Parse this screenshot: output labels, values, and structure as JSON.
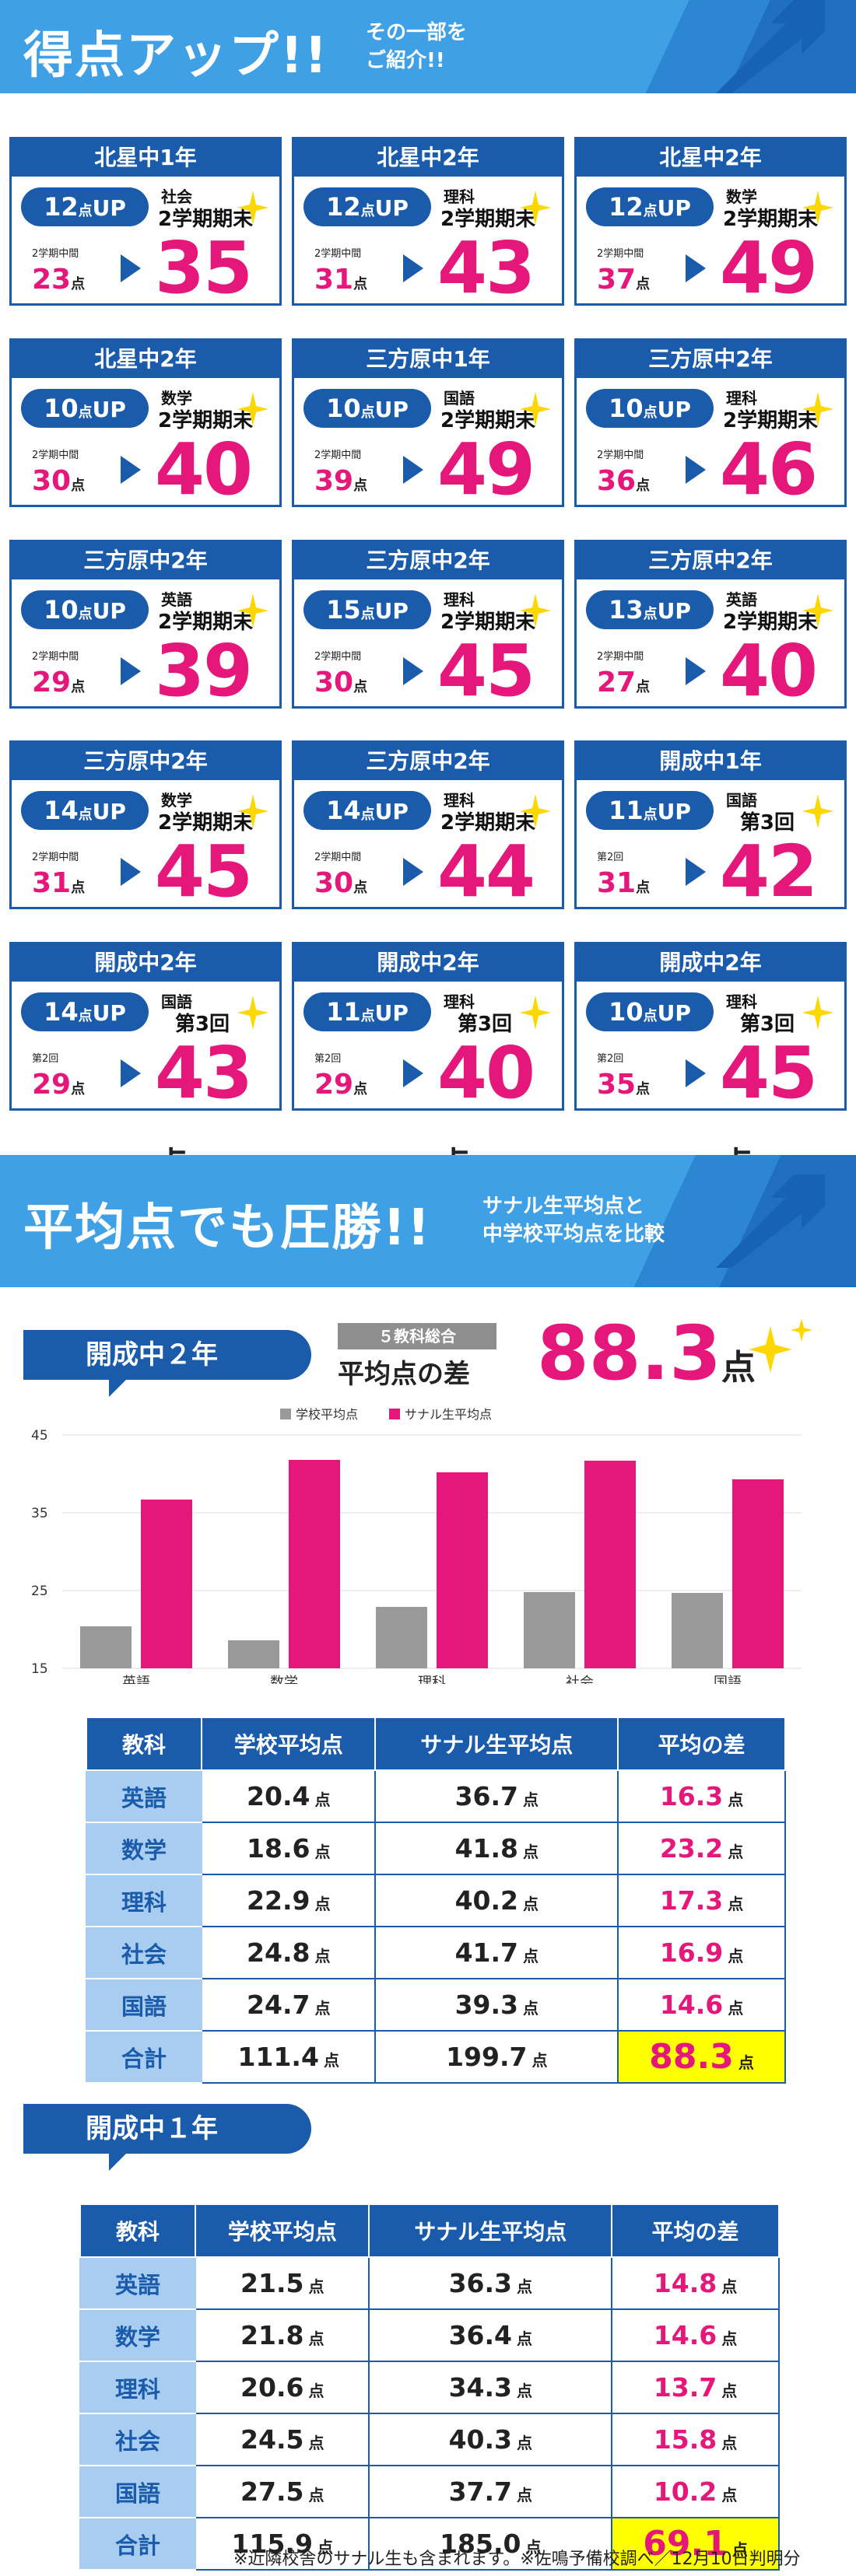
{
  "banner1": {
    "title": "得点アップ!!",
    "sub_line1": "その一部を",
    "sub_line2": "ご紹介!!"
  },
  "cards": [
    {
      "school": "北星中1年",
      "up": "12",
      "subject": "社会",
      "term": "2学期期末",
      "prev_label": "2学期中間",
      "prev": "23",
      "score": "35"
    },
    {
      "school": "北星中2年",
      "up": "12",
      "subject": "理科",
      "term": "2学期期末",
      "prev_label": "2学期中間",
      "prev": "31",
      "score": "43"
    },
    {
      "school": "北星中2年",
      "up": "12",
      "subject": "数学",
      "term": "2学期期末",
      "prev_label": "2学期中間",
      "prev": "37",
      "score": "49"
    },
    {
      "school": "北星中2年",
      "up": "10",
      "subject": "数学",
      "term": "2学期期末",
      "prev_label": "2学期中間",
      "prev": "30",
      "score": "40"
    },
    {
      "school": "三方原中1年",
      "up": "10",
      "subject": "国語",
      "term": "2学期期末",
      "prev_label": "2学期中間",
      "prev": "39",
      "score": "49"
    },
    {
      "school": "三方原中2年",
      "up": "10",
      "subject": "理科",
      "term": "2学期期末",
      "prev_label": "2学期中間",
      "prev": "36",
      "score": "46"
    },
    {
      "school": "三方原中2年",
      "up": "10",
      "subject": "英語",
      "term": "2学期期末",
      "prev_label": "2学期中間",
      "prev": "29",
      "score": "39"
    },
    {
      "school": "三方原中2年",
      "up": "15",
      "subject": "理科",
      "term": "2学期期末",
      "prev_label": "2学期中間",
      "prev": "30",
      "score": "45"
    },
    {
      "school": "三方原中2年",
      "up": "13",
      "subject": "英語",
      "term": "2学期期末",
      "prev_label": "2学期中間",
      "prev": "27",
      "score": "40"
    },
    {
      "school": "三方原中2年",
      "up": "14",
      "subject": "数学",
      "term": "2学期期末",
      "prev_label": "2学期中間",
      "prev": "31",
      "score": "45"
    },
    {
      "school": "三方原中2年",
      "up": "14",
      "subject": "理科",
      "term": "2学期期末",
      "prev_label": "2学期中間",
      "prev": "30",
      "score": "44"
    },
    {
      "school": "開成中1年",
      "up": "11",
      "subject": "国語",
      "term": "第3回",
      "prev_label": "第2回",
      "prev": "31",
      "score": "42"
    },
    {
      "school": "開成中2年",
      "up": "14",
      "subject": "国語",
      "term": "第3回",
      "prev_label": "第2回",
      "prev": "29",
      "score": "43"
    },
    {
      "school": "開成中2年",
      "up": "11",
      "subject": "理科",
      "term": "第3回",
      "prev_label": "第2回",
      "prev": "29",
      "score": "40"
    },
    {
      "school": "開成中2年",
      "up": "10",
      "subject": "理科",
      "term": "第3回",
      "prev_label": "第2回",
      "prev": "35",
      "score": "45"
    }
  ],
  "labels": {
    "up_ten": "点",
    "up_suffix": "UP",
    "point": "点"
  },
  "banner2": {
    "title": "平均点でも圧勝!!",
    "sub_line1": "サナル生平均点と",
    "sub_line2": "中学校平均点を比較"
  },
  "kaisei2": {
    "tag": "開成中２年",
    "badge": "５教科総合",
    "diff_label": "平均点の差",
    "diff_value": "88.3",
    "table": {
      "headers": [
        "教科",
        "学校平均点",
        "サナル生平均点",
        "平均の差"
      ],
      "rows": [
        {
          "subject": "英語",
          "school": "20.4",
          "sanaru": "36.7",
          "diff": "16.3"
        },
        {
          "subject": "数学",
          "school": "18.6",
          "sanaru": "41.8",
          "diff": "23.2"
        },
        {
          "subject": "理科",
          "school": "22.9",
          "sanaru": "40.2",
          "diff": "17.3"
        },
        {
          "subject": "社会",
          "school": "24.8",
          "sanaru": "41.7",
          "diff": "16.9"
        },
        {
          "subject": "国語",
          "school": "24.7",
          "sanaru": "39.3",
          "diff": "14.6"
        },
        {
          "subject": "合計",
          "school": "111.4",
          "sanaru": "199.7",
          "diff": "88.3"
        }
      ]
    }
  },
  "chart_data": {
    "type": "bar",
    "categories": [
      "英語",
      "数学",
      "理科",
      "社会",
      "国語"
    ],
    "series": [
      {
        "name": "学校平均点",
        "values": [
          20.4,
          18.6,
          22.9,
          24.8,
          24.7
        ],
        "color": "#999999"
      },
      {
        "name": "サナル生平均点",
        "values": [
          36.7,
          41.8,
          40.2,
          41.7,
          39.3
        ],
        "color": "#e6177a"
      }
    ],
    "yticks": [
      "45",
      "35",
      "25",
      "15"
    ],
    "ylim": [
      15,
      45
    ],
    "legend": "top-center",
    "grid": true
  },
  "kaisei1": {
    "tag": "開成中１年",
    "table": {
      "headers": [
        "教科",
        "学校平均点",
        "サナル生平均点",
        "平均の差"
      ],
      "rows": [
        {
          "subject": "英語",
          "school": "21.5",
          "sanaru": "36.3",
          "diff": "14.8"
        },
        {
          "subject": "数学",
          "school": "21.8",
          "sanaru": "36.4",
          "diff": "14.6"
        },
        {
          "subject": "理科",
          "school": "20.6",
          "sanaru": "34.3",
          "diff": "13.7"
        },
        {
          "subject": "社会",
          "school": "24.5",
          "sanaru": "40.3",
          "diff": "15.8"
        },
        {
          "subject": "国語",
          "school": "27.5",
          "sanaru": "37.7",
          "diff": "10.2"
        },
        {
          "subject": "合計",
          "school": "115.9",
          "sanaru": "185.0",
          "diff": "69.1"
        }
      ]
    }
  },
  "footnote": "※近隣校舎のサナル生も含まれます。※佐鳴予備校調べ／12月10日判明分",
  "colors": {
    "navy": "#1a5cab",
    "sky": "#3fa0e6",
    "pink": "#e6177a",
    "gray": "#999999",
    "highlight": "#ffff00"
  }
}
